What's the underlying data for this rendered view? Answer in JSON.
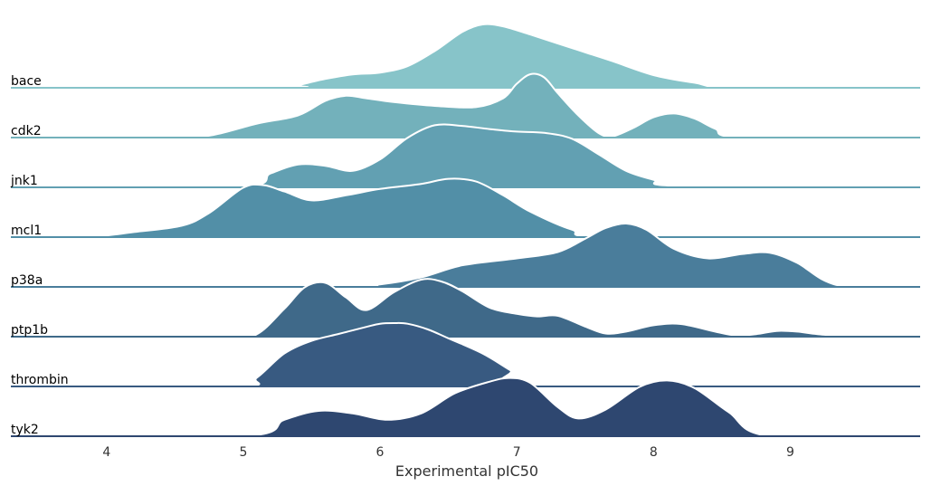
{
  "chart_data": {
    "type": "area",
    "subtype": "ridgeline",
    "xlabel": "Experimental pIC50",
    "xlim": [
      3.3,
      9.95
    ],
    "xticks": [
      4,
      5,
      6,
      7,
      8,
      9
    ],
    "grid": false,
    "legend": "none",
    "series": [
      {
        "name": "bace",
        "color": "#87c4c9",
        "x": [
          3.3,
          5.3,
          5.4,
          5.6,
          5.8,
          6.0,
          6.2,
          6.4,
          6.6,
          6.75,
          6.9,
          7.1,
          7.3,
          7.5,
          7.7,
          8.0,
          8.3,
          8.6,
          9.95
        ],
        "y": [
          0,
          0,
          0.04,
          0.14,
          0.21,
          0.24,
          0.34,
          0.58,
          0.88,
          1.0,
          0.97,
          0.84,
          0.7,
          0.56,
          0.42,
          0.2,
          0.08,
          0,
          0
        ]
      },
      {
        "name": "cdk2",
        "color": "#73b1bb",
        "x": [
          3.3,
          4.4,
          4.75,
          5.1,
          5.4,
          5.6,
          5.75,
          5.9,
          6.1,
          6.4,
          6.7,
          6.9,
          7.0,
          7.1,
          7.2,
          7.3,
          7.45,
          7.6,
          7.7,
          7.85,
          8.0,
          8.15,
          8.3,
          8.45,
          8.65,
          9.95
        ],
        "y": [
          0,
          0,
          0.03,
          0.22,
          0.35,
          0.58,
          0.66,
          0.62,
          0.56,
          0.5,
          0.48,
          0.62,
          0.85,
          1.0,
          0.95,
          0.7,
          0.35,
          0.07,
          0.02,
          0.15,
          0.32,
          0.38,
          0.3,
          0.14,
          0,
          0
        ]
      },
      {
        "name": "jnk1",
        "color": "#62a0b2",
        "x": [
          3.3,
          4.95,
          5.2,
          5.4,
          5.6,
          5.8,
          6.0,
          6.2,
          6.4,
          6.6,
          6.8,
          7.0,
          7.2,
          7.4,
          7.6,
          7.8,
          8.0,
          8.2,
          9.95
        ],
        "y": [
          0,
          0,
          0.22,
          0.36,
          0.34,
          0.26,
          0.44,
          0.78,
          0.98,
          0.97,
          0.92,
          0.88,
          0.86,
          0.77,
          0.52,
          0.26,
          0.12,
          0.02,
          0
        ]
      },
      {
        "name": "mcl1",
        "color": "#528fa7",
        "x": [
          3.3,
          3.85,
          4.2,
          4.55,
          4.75,
          5.0,
          5.15,
          5.3,
          5.5,
          5.75,
          6.0,
          6.3,
          6.5,
          6.7,
          6.9,
          7.1,
          7.4,
          7.7,
          9.95
        ],
        "y": [
          0,
          0,
          0.08,
          0.18,
          0.38,
          0.78,
          0.82,
          0.72,
          0.58,
          0.66,
          0.76,
          0.84,
          0.92,
          0.88,
          0.66,
          0.4,
          0.12,
          0,
          0
        ]
      },
      {
        "name": "p38a",
        "color": "#4a7d9b",
        "x": [
          3.3,
          5.7,
          6.0,
          6.3,
          6.6,
          7.0,
          7.3,
          7.5,
          7.65,
          7.8,
          7.95,
          8.15,
          8.4,
          8.65,
          8.85,
          9.05,
          9.25,
          9.45,
          9.95
        ],
        "y": [
          0,
          0,
          0.04,
          0.15,
          0.34,
          0.45,
          0.55,
          0.76,
          0.93,
          1.0,
          0.9,
          0.6,
          0.45,
          0.52,
          0.54,
          0.38,
          0.1,
          0,
          0
        ]
      },
      {
        "name": "ptp1b",
        "color": "#3f6989",
        "x": [
          3.3,
          4.9,
          5.1,
          5.3,
          5.45,
          5.6,
          5.75,
          5.9,
          6.1,
          6.3,
          6.45,
          6.6,
          6.8,
          7.0,
          7.15,
          7.3,
          7.5,
          7.65,
          7.8,
          8.0,
          8.2,
          8.45,
          8.6,
          8.75,
          8.9,
          9.05,
          9.2,
          9.45,
          9.95
        ],
        "y": [
          0,
          0,
          0.04,
          0.44,
          0.78,
          0.85,
          0.62,
          0.42,
          0.7,
          0.9,
          0.87,
          0.72,
          0.46,
          0.36,
          0.32,
          0.33,
          0.16,
          0.05,
          0.08,
          0.18,
          0.2,
          0.08,
          0.02,
          0.04,
          0.09,
          0.08,
          0.04,
          0,
          0
        ]
      },
      {
        "name": "thrombin",
        "color": "#385a81",
        "x": [
          3.3,
          4.95,
          5.1,
          5.3,
          5.5,
          5.7,
          5.9,
          6.0,
          6.1,
          6.2,
          6.35,
          6.5,
          6.75,
          6.95,
          7.15,
          9.95
        ],
        "y": [
          0,
          0,
          0.14,
          0.52,
          0.72,
          0.83,
          0.94,
          0.99,
          1.0,
          0.99,
          0.9,
          0.76,
          0.52,
          0.26,
          0,
          0
        ]
      },
      {
        "name": "tyk2",
        "color": "#2e4770",
        "x": [
          3.3,
          5.0,
          5.3,
          5.55,
          5.8,
          6.05,
          6.3,
          6.55,
          6.8,
          6.95,
          7.1,
          7.3,
          7.45,
          7.65,
          7.9,
          8.1,
          8.3,
          8.55,
          8.85,
          9.95
        ],
        "y": [
          0,
          0,
          0.26,
          0.4,
          0.36,
          0.26,
          0.36,
          0.68,
          0.86,
          0.92,
          0.84,
          0.46,
          0.28,
          0.42,
          0.78,
          0.88,
          0.76,
          0.38,
          0,
          0
        ]
      }
    ]
  }
}
